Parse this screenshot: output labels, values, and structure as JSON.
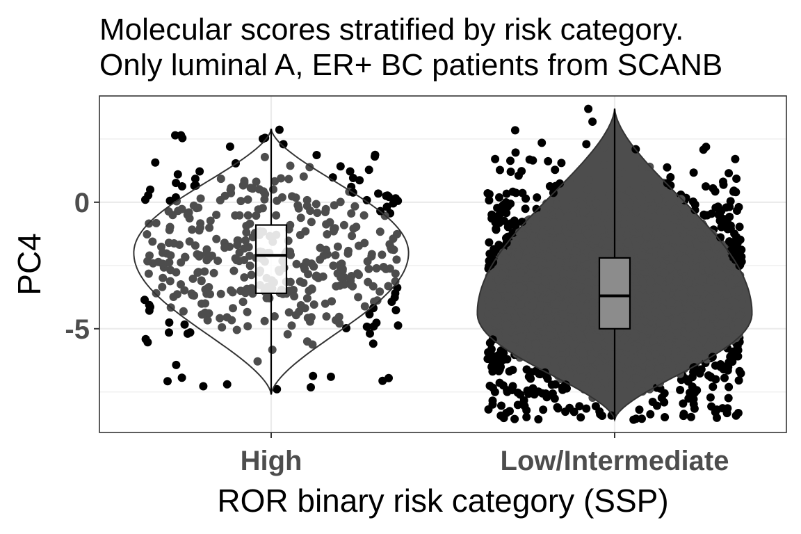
{
  "chart_data": {
    "type": "violin",
    "title": [
      "Molecular scores stratified by risk category.",
      "Only luminal A, ER+ BC patients from SCANB"
    ],
    "xlabel": "ROR binary risk category (SSP)",
    "ylabel": "PC4",
    "categories": [
      "High",
      "Low/Intermediate"
    ],
    "ylim": [
      -9.1,
      4.2
    ],
    "yticks": [
      0,
      -5
    ],
    "ytick_labels": [
      "0",
      "-5"
    ],
    "grid": true,
    "legend": "none",
    "point_color": "#000000",
    "groups": [
      {
        "name": "High",
        "n": 420,
        "violin_range": [
          -7.6,
          2.9
        ],
        "violin_mode": -2.0,
        "median": -2.1,
        "q1": -3.6,
        "q3": -0.9,
        "whisker_low": -7.6,
        "whisker_high": 2.9,
        "box_fill": "#ffffff",
        "violin_fill": "#ffffff",
        "inside_point_color": "#4d4d4d"
      },
      {
        "name": "Low/Intermediate",
        "n": 2600,
        "violin_range": [
          -8.6,
          3.7
        ],
        "violin_mode": -4.4,
        "median": -3.7,
        "q1": -5.0,
        "q3": -2.2,
        "whisker_low": -8.6,
        "whisker_high": 3.7,
        "box_fill": "#8c8c8c",
        "violin_fill": "#4d4d4d",
        "inside_point_color": "#4d4d4d"
      }
    ]
  }
}
